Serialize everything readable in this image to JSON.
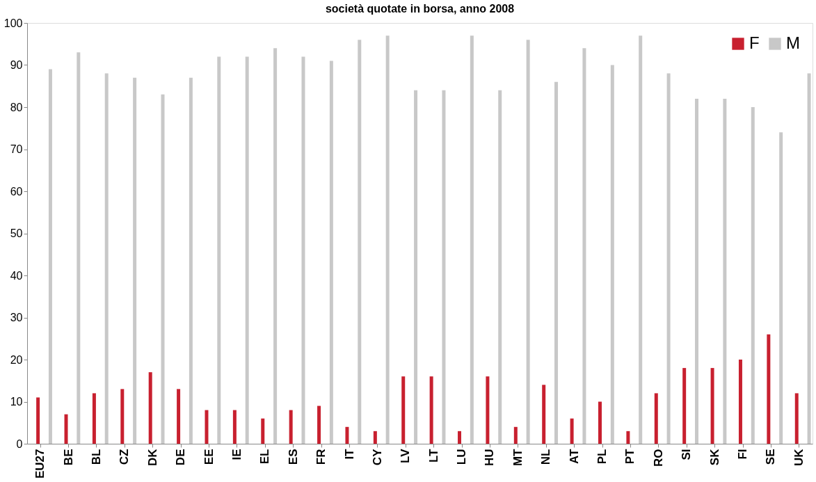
{
  "chart_data": {
    "type": "bar",
    "title": "società quotate in borsa, anno 2008",
    "categories": [
      "EU27",
      "BE",
      "BL",
      "CZ",
      "DK",
      "DE",
      "EE",
      "IE",
      "EL",
      "ES",
      "FR",
      "IT",
      "CY",
      "LV",
      "LT",
      "LU",
      "HU",
      "MT",
      "NL",
      "AT",
      "PL",
      "PT",
      "RO",
      "SI",
      "SK",
      "FI",
      "SE",
      "UK"
    ],
    "series": [
      {
        "name": "F",
        "color": "#c8202f",
        "values": [
          11,
          7,
          12,
          13,
          17,
          13,
          8,
          8,
          6,
          8,
          9,
          4,
          3,
          16,
          16,
          3,
          16,
          4,
          14,
          6,
          10,
          3,
          12,
          18,
          18,
          20,
          26,
          12
        ]
      },
      {
        "name": "M",
        "color": "#c8c8c8",
        "values": [
          89,
          93,
          88,
          87,
          83,
          87,
          92,
          92,
          94,
          92,
          91,
          96,
          97,
          84,
          84,
          97,
          84,
          96,
          86,
          94,
          90,
          97,
          88,
          82,
          82,
          80,
          74,
          88
        ]
      }
    ],
    "ylim": [
      0,
      100
    ],
    "yticks": [
      0,
      10,
      20,
      30,
      40,
      50,
      60,
      70,
      80,
      90,
      100
    ],
    "grid": false,
    "legend": "top right"
  }
}
